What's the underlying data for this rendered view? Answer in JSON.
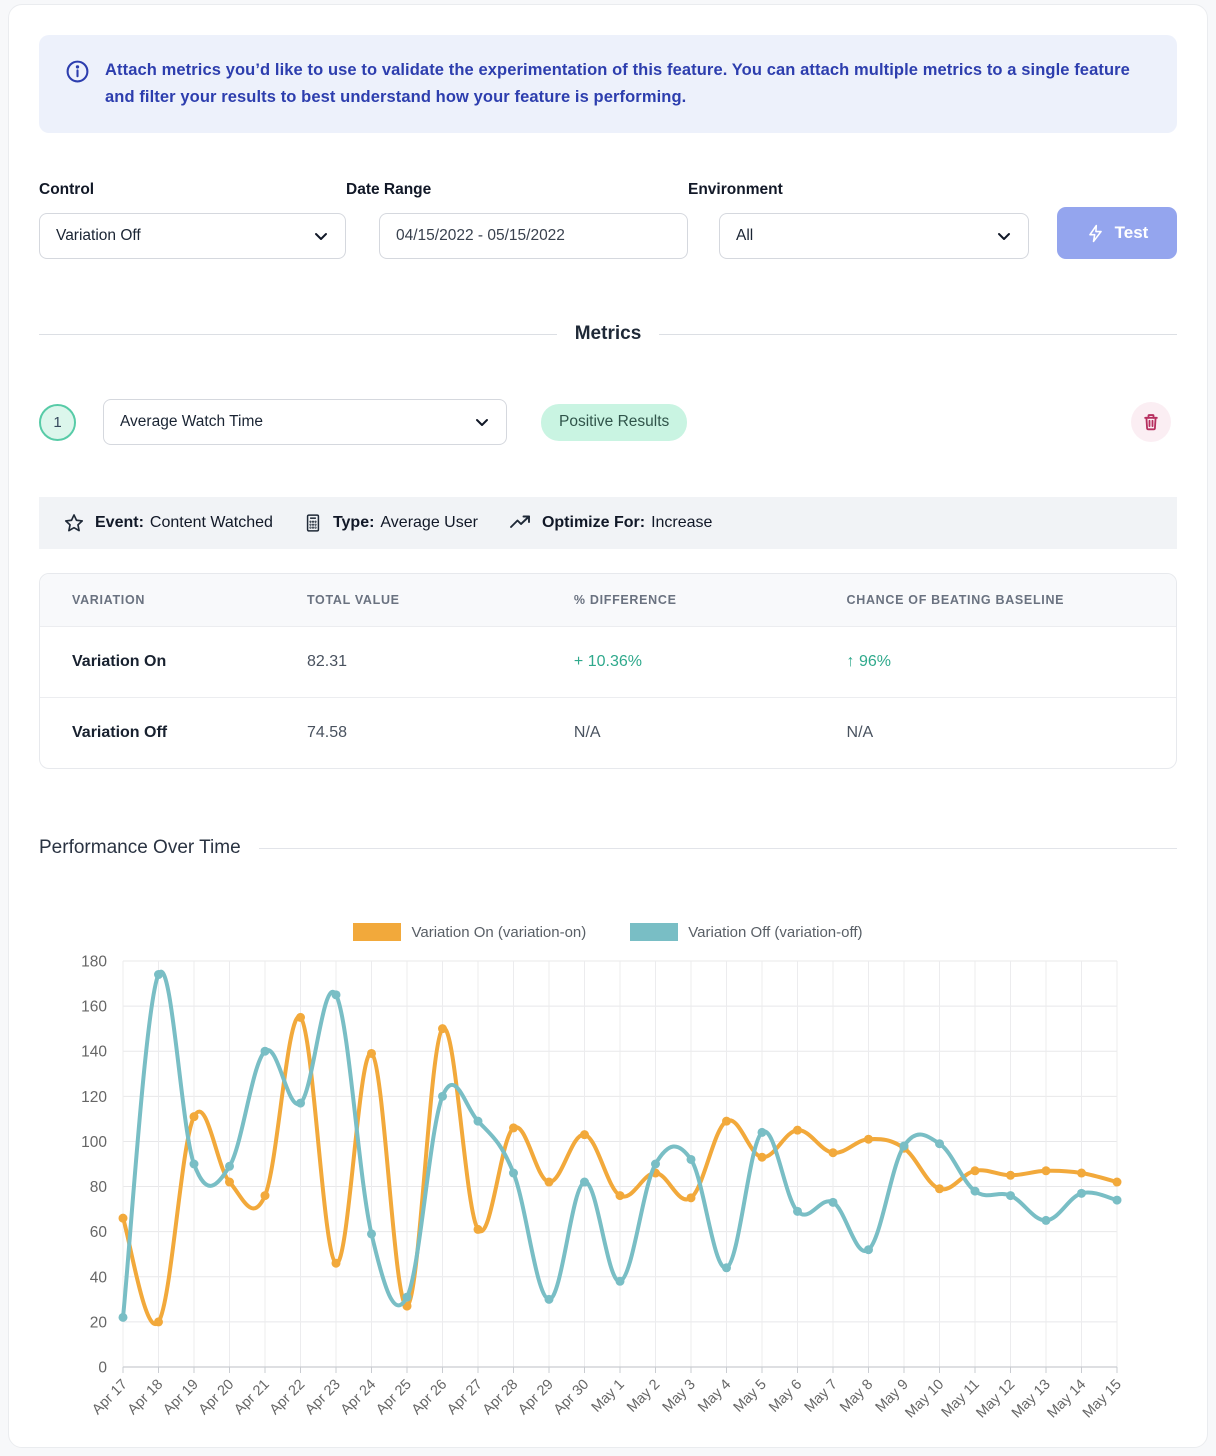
{
  "banner": {
    "text": "Attach metrics you’d like to use to validate the experimentation of this feature. You can attach multiple metrics to a single feature and filter your results to best understand how your feature is performing."
  },
  "filters": {
    "control": {
      "label": "Control",
      "value": "Variation Off"
    },
    "date_range": {
      "label": "Date Range",
      "value": "04/15/2022 - 05/15/2022"
    },
    "environment": {
      "label": "Environment",
      "value": "All"
    },
    "test_button_label": "Test"
  },
  "metrics": {
    "section_title": "Metrics",
    "item": {
      "index": "1",
      "metric_name": "Average Watch Time",
      "badge": "Positive Results",
      "event_label": "Event:",
      "event_value": "Content Watched",
      "type_label": "Type:",
      "type_value": "Average User",
      "optimize_label": "Optimize For:",
      "optimize_value": "Increase"
    },
    "table": {
      "headers": [
        "VARIATION",
        "TOTAL VALUE",
        "% DIFFERENCE",
        "CHANCE OF BEATING BASELINE"
      ],
      "rows": [
        {
          "variation": "Variation On",
          "total_value": "82.31",
          "difference": "+ 10.36%",
          "chance": "↑ 96%"
        },
        {
          "variation": "Variation Off",
          "total_value": "74.58",
          "difference": "N/A",
          "chance": "N/A"
        }
      ]
    }
  },
  "performance": {
    "section_title": "Performance Over Time"
  },
  "chart_data": {
    "type": "line",
    "title": "Performance Over Time",
    "x": [
      "Apr 17",
      "Apr 18",
      "Apr 19",
      "Apr 20",
      "Apr 21",
      "Apr 22",
      "Apr 23",
      "Apr 24",
      "Apr 25",
      "Apr 26",
      "Apr 27",
      "Apr 28",
      "Apr 29",
      "Apr 30",
      "May 1",
      "May 2",
      "May 3",
      "May 4",
      "May 5",
      "May 6",
      "May 7",
      "May 8",
      "May 9",
      "May 10",
      "May 11",
      "May 12",
      "May 13",
      "May 14",
      "May 15"
    ],
    "series": [
      {
        "name": "Variation On (variation-on)",
        "color": "#F2A93B",
        "values": [
          66,
          20,
          111,
          82,
          76,
          155,
          46,
          139,
          27,
          150,
          61,
          106,
          82,
          103,
          76,
          86,
          75,
          109,
          93,
          105,
          95,
          101,
          97,
          79,
          87,
          85,
          87,
          86,
          82
        ]
      },
      {
        "name": "Variation Off (variation-off)",
        "color": "#79BEC5",
        "values": [
          22,
          174,
          90,
          89,
          140,
          117,
          165,
          59,
          31,
          120,
          109,
          86,
          30,
          82,
          38,
          90,
          92,
          44,
          104,
          69,
          73,
          52,
          98,
          99,
          78,
          76,
          65,
          77,
          74
        ]
      }
    ],
    "ylim": [
      0,
      180
    ],
    "ytick_step": 20,
    "grid": true,
    "legend_position": "top",
    "xlabel": "",
    "ylabel": ""
  },
  "colors": {
    "accent_indigo": "#94A5EE",
    "banner_bg": "#EDF1FB",
    "banner_text": "#2D3EAE",
    "positive": "#2FA98C",
    "badge_bg": "#C9F4E2",
    "metric_circle_border": "#57CBA7",
    "danger": "#B73060",
    "danger_bg": "#FBEEF3",
    "series_variation_on": "#F2A93B",
    "series_variation_off": "#79BEC5"
  }
}
